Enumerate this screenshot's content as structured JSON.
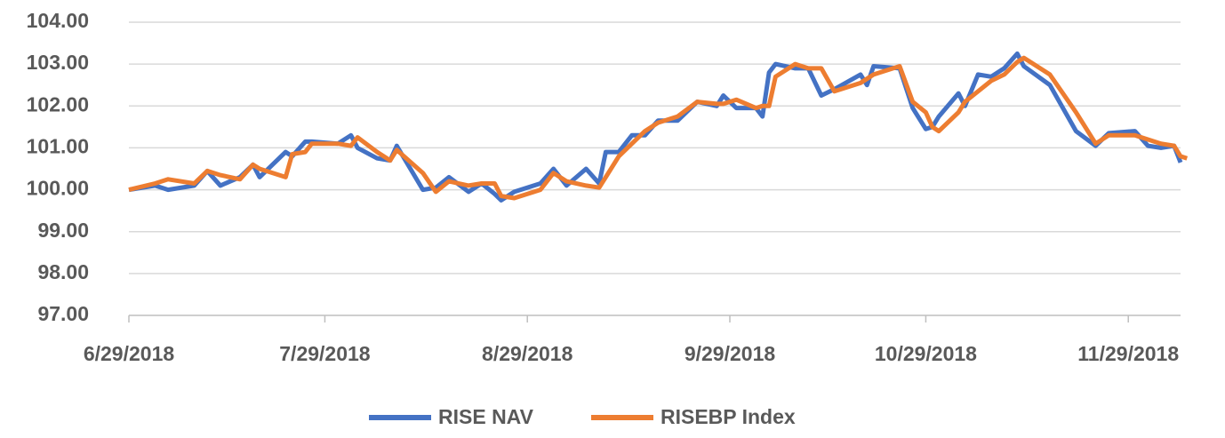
{
  "chart_data": {
    "type": "line",
    "x": [
      "2018-06-29",
      "2018-07-03",
      "2018-07-05",
      "2018-07-09",
      "2018-07-11",
      "2018-07-13",
      "2018-07-16",
      "2018-07-18",
      "2018-07-19",
      "2018-07-23",
      "2018-07-24",
      "2018-07-26",
      "2018-07-27",
      "2018-07-31",
      "2018-08-02",
      "2018-08-03",
      "2018-08-06",
      "2018-08-08",
      "2018-08-09",
      "2018-08-13",
      "2018-08-15",
      "2018-08-17",
      "2018-08-20",
      "2018-08-22",
      "2018-08-24",
      "2018-08-25",
      "2018-08-27",
      "2018-08-31",
      "2018-09-02",
      "2018-09-04",
      "2018-09-07",
      "2018-09-09",
      "2018-09-10",
      "2018-09-12",
      "2018-09-14",
      "2018-09-16",
      "2018-09-18",
      "2018-09-21",
      "2018-09-24",
      "2018-09-27",
      "2018-09-28",
      "2018-09-30",
      "2018-10-03",
      "2018-10-04",
      "2018-10-05",
      "2018-10-06",
      "2018-10-09",
      "2018-10-11",
      "2018-10-13",
      "2018-10-15",
      "2018-10-19",
      "2018-10-20",
      "2018-10-21",
      "2018-10-25",
      "2018-10-27",
      "2018-10-29",
      "2018-10-30",
      "2018-10-31",
      "2018-11-03",
      "2018-11-04",
      "2018-11-06",
      "2018-11-08",
      "2018-11-10",
      "2018-11-12",
      "2018-11-13",
      "2018-11-17",
      "2018-11-21",
      "2018-11-24",
      "2018-11-26",
      "2018-11-30",
      "2018-12-02",
      "2018-12-04",
      "2018-12-06",
      "2018-12-07",
      "2018-12-08"
    ],
    "series": [
      {
        "name": "RISE NAV",
        "color": "#4472c4",
        "values": [
          100.0,
          100.1,
          100.0,
          100.1,
          100.45,
          100.1,
          100.3,
          100.6,
          100.3,
          100.9,
          100.8,
          101.15,
          101.15,
          101.1,
          101.3,
          101.0,
          100.75,
          100.7,
          101.05,
          100.0,
          100.05,
          100.3,
          99.95,
          100.15,
          99.9,
          99.75,
          99.95,
          100.15,
          100.5,
          100.1,
          100.5,
          100.15,
          100.9,
          100.9,
          101.3,
          101.3,
          101.65,
          101.65,
          102.1,
          102.0,
          102.25,
          101.95,
          101.95,
          101.75,
          102.8,
          103.0,
          102.9,
          102.9,
          102.25,
          102.4,
          102.75,
          102.5,
          102.95,
          102.9,
          101.95,
          101.45,
          101.5,
          101.75,
          102.3,
          102.0,
          102.75,
          102.7,
          102.9,
          103.25,
          102.95,
          102.5,
          101.4,
          101.05,
          101.35,
          101.4,
          101.05,
          101.0,
          101.05,
          100.65,
          null
        ]
      },
      {
        "name": "RISEBP Index",
        "color": "#ed7d31",
        "values": [
          100.0,
          100.15,
          100.25,
          100.15,
          100.45,
          100.35,
          100.25,
          100.6,
          100.5,
          100.3,
          100.85,
          100.9,
          101.1,
          101.1,
          101.05,
          101.25,
          100.9,
          100.7,
          100.95,
          100.4,
          99.95,
          100.2,
          100.1,
          100.15,
          100.15,
          99.85,
          99.8,
          100.0,
          100.4,
          100.2,
          100.1,
          100.05,
          100.3,
          100.8,
          101.1,
          101.4,
          101.6,
          101.75,
          102.1,
          102.05,
          102.05,
          102.15,
          101.95,
          102.0,
          102.0,
          102.7,
          103.0,
          102.9,
          102.9,
          102.35,
          102.55,
          102.65,
          102.75,
          102.95,
          102.1,
          101.85,
          101.5,
          101.4,
          101.85,
          102.1,
          102.35,
          102.6,
          102.75,
          103.05,
          103.15,
          102.75,
          101.85,
          101.1,
          101.3,
          101.3,
          101.2,
          101.1,
          101.05,
          100.8,
          100.75
        ]
      }
    ],
    "xlim": [
      "2018-06-29",
      "2018-12-07"
    ],
    "xticks": [
      {
        "value": "2018-06-29",
        "label": "6/29/2018"
      },
      {
        "value": "2018-07-29",
        "label": "7/29/2018"
      },
      {
        "value": "2018-08-29",
        "label": "8/29/2018"
      },
      {
        "value": "2018-09-29",
        "label": "9/29/2018"
      },
      {
        "value": "2018-10-29",
        "label": "10/29/2018"
      },
      {
        "value": "2018-11-29",
        "label": "11/29/2018"
      }
    ],
    "ylim": [
      97,
      104
    ],
    "yticks": [
      {
        "value": 97,
        "label": "97.00"
      },
      {
        "value": 98,
        "label": "98.00"
      },
      {
        "value": 99,
        "label": "99.00"
      },
      {
        "value": 100,
        "label": "100.00"
      },
      {
        "value": 101,
        "label": "101.00"
      },
      {
        "value": 102,
        "label": "102.00"
      },
      {
        "value": 103,
        "label": "103.00"
      },
      {
        "value": 104,
        "label": "104.00"
      }
    ],
    "grid": true,
    "legend": "bottom"
  }
}
